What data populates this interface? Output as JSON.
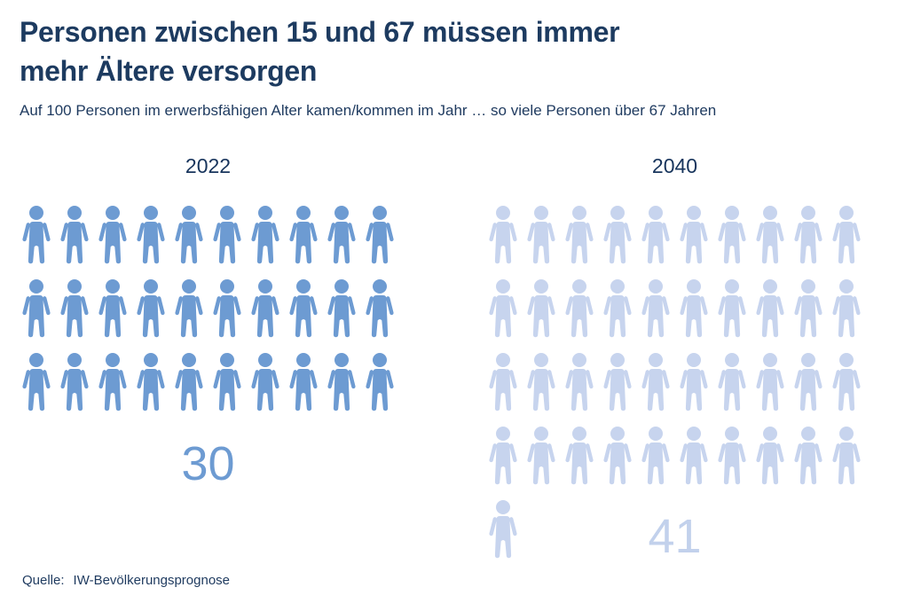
{
  "header": {
    "title_line1": "Personen zwischen 15 und 67 müssen immer",
    "title_line2": "mehr Ältere versorgen",
    "subtitle": "Auf 100 Personen im erwerbsfähigen Alter kamen/kommen im Jahr … so viele Personen über 67 Jahren"
  },
  "chart_data": {
    "type": "pictogram",
    "title": "Personen zwischen 15 und 67 müssen immer mehr Ältere versorgen",
    "subtitle": "Auf 100 Personen im erwerbsfähigen Alter kamen/kommen im Jahr … so viele Personen über 67 Jahren",
    "categories": [
      "2022",
      "2040"
    ],
    "values": [
      30,
      41
    ],
    "icons_per_row": 10,
    "icon_unit": "1 Person über 67 Jahren je 100 Personen im erwerbsfähigen Alter",
    "groups": [
      {
        "label": "2022",
        "value": 30,
        "icon_color": "#6d9bd2",
        "value_color": "#6d9bd2"
      },
      {
        "label": "2040",
        "value": 41,
        "icon_color": "#c7d4ee",
        "value_color": "#c2d1ec"
      }
    ]
  },
  "footer": {
    "source_label": "Quelle:",
    "source_value": "IW-Bevölkerungsprognose"
  },
  "colors": {
    "background": "#ffffff",
    "heading": "#1d3b60",
    "text": "#1e3a5f",
    "year_label": "#17345c",
    "icon_2022": "#6d9bd2",
    "icon_2040": "#c7d4ee"
  }
}
